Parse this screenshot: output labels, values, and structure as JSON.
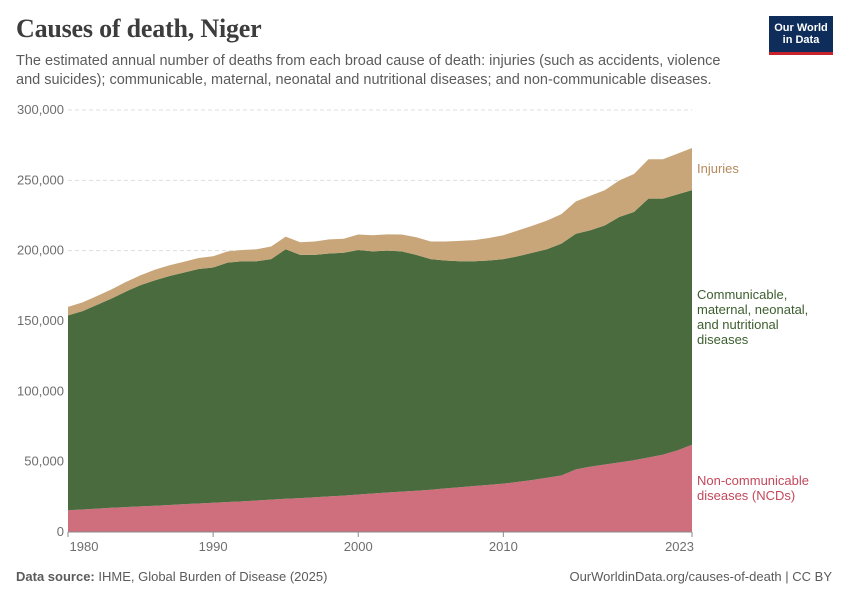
{
  "header": {
    "title": "Causes of death, Niger",
    "subtitle": "The estimated annual number of deaths from each broad cause of death: injuries (such as accidents, violence and suicides); communicable, maternal, neonatal and nutritional diseases; and non-communicable diseases."
  },
  "logo": {
    "line1": "Our World",
    "line2": "in Data"
  },
  "footer": {
    "source_label": "Data source:",
    "source_text": "IHME, Global Burden of Disease (2025)",
    "url": "OurWorldinData.org/causes-of-death | CC BY"
  },
  "chart_data": {
    "type": "area",
    "stacked": true,
    "title": "Causes of death, Niger",
    "x": [
      1980,
      1981,
      1982,
      1983,
      1984,
      1985,
      1986,
      1987,
      1988,
      1989,
      1990,
      1991,
      1992,
      1993,
      1994,
      1995,
      1996,
      1997,
      1998,
      1999,
      2000,
      2001,
      2002,
      2003,
      2004,
      2005,
      2006,
      2007,
      2008,
      2009,
      2010,
      2011,
      2012,
      2013,
      2014,
      2015,
      2016,
      2017,
      2018,
      2019,
      2020,
      2021,
      2022,
      2023
    ],
    "x_ticks": [
      1980,
      1990,
      2000,
      2010,
      2023
    ],
    "ylim": [
      0,
      300000
    ],
    "y_ticks": [
      0,
      50000,
      100000,
      150000,
      200000,
      250000,
      300000
    ],
    "y_tick_labels": [
      "0",
      "50,000",
      "100,000",
      "150,000",
      "200,000",
      "250,000",
      "300,000"
    ],
    "grid": true,
    "legend": "labels at right end of each area",
    "series": [
      {
        "name": "Non-communicable diseases (NCDs)",
        "color": "#cf6f7e",
        "label_color": "#c2485b",
        "values": [
          15500,
          16000,
          16600,
          17200,
          17700,
          18200,
          18700,
          19200,
          19800,
          20300,
          20800,
          21300,
          21800,
          22400,
          23000,
          23600,
          24100,
          24700,
          25300,
          25900,
          26700,
          27400,
          28100,
          28700,
          29300,
          30000,
          31000,
          31800,
          32700,
          33500,
          34400,
          35600,
          37000,
          38600,
          40200,
          44500,
          46500,
          48000,
          49500,
          51000,
          53000,
          55000,
          58000,
          62000
        ]
      },
      {
        "name": "Communicable, maternal, neonatal, and nutritional diseases",
        "color": "#4a6b3e",
        "label_color": "#3c5e2f",
        "values": [
          138500,
          141000,
          144900,
          148800,
          153300,
          157300,
          160300,
          162800,
          164700,
          166700,
          167200,
          170200,
          170700,
          170100,
          171000,
          177400,
          172900,
          172300,
          172700,
          172600,
          173800,
          172100,
          171900,
          170800,
          167700,
          164000,
          162000,
          160700,
          159800,
          159500,
          159600,
          160400,
          161500,
          162400,
          164800,
          167500,
          168000,
          170000,
          174500,
          176500,
          184000,
          182000,
          182000,
          181000
        ]
      },
      {
        "name": "Injuries",
        "color": "#c9a67a",
        "label_color": "#b48a5e",
        "values": [
          6000,
          6200,
          6300,
          6500,
          6800,
          7000,
          7500,
          7600,
          7600,
          7800,
          8000,
          8000,
          8000,
          8500,
          9000,
          9000,
          9000,
          9500,
          10000,
          10000,
          11000,
          11500,
          11600,
          12000,
          12500,
          12500,
          13500,
          14500,
          15000,
          16000,
          17000,
          18300,
          19200,
          20400,
          21000,
          23000,
          24500,
          25000,
          26000,
          27000,
          28000,
          28000,
          29000,
          30000
        ]
      }
    ],
    "series_labels": [
      {
        "lines": [
          "Injuries"
        ]
      },
      {
        "lines": [
          "Communicable,",
          "maternal, neonatal,",
          "and nutritional",
          "diseases"
        ]
      },
      {
        "lines": [
          "Non-communicable",
          "diseases (NCDs)"
        ]
      }
    ]
  }
}
